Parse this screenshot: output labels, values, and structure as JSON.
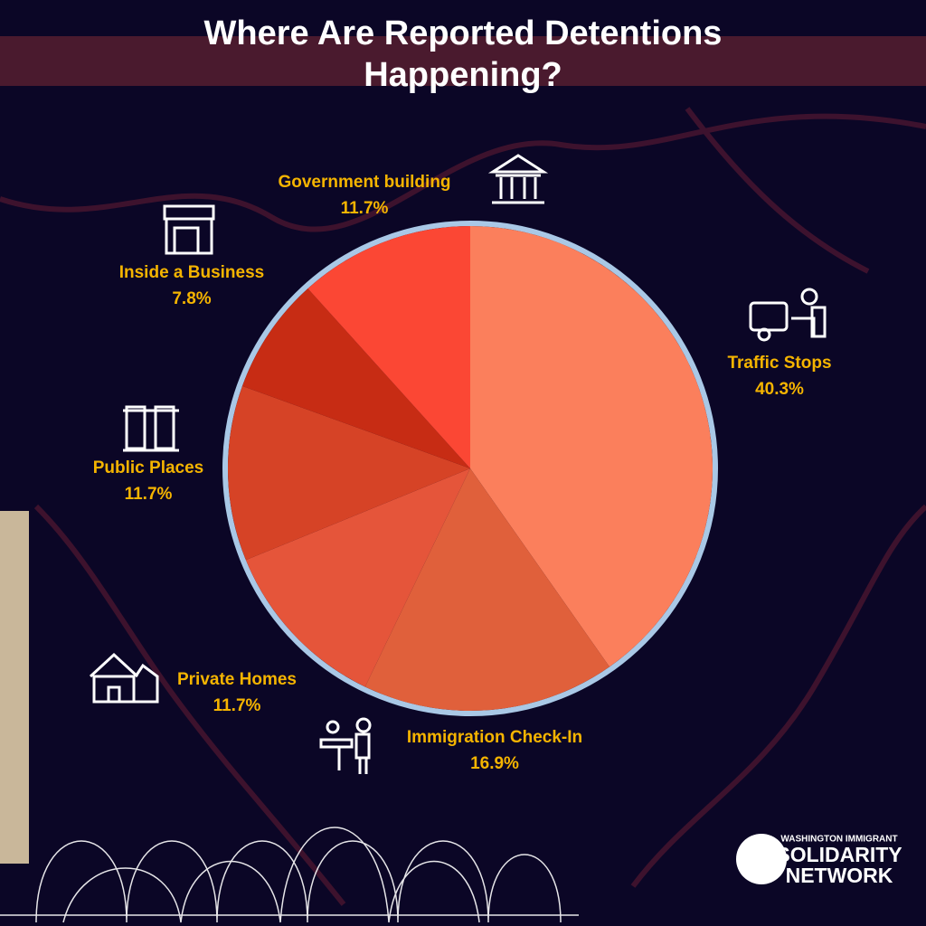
{
  "chart_data": {
    "type": "pie",
    "title": "Where Are Reported Detentions Happening?",
    "categories": [
      "Traffic Stops",
      "Immigration Check-In",
      "Private Homes",
      "Public Places",
      "Inside a Business",
      "Government building"
    ],
    "values": [
      40.3,
      16.9,
      11.7,
      11.7,
      7.8,
      11.7
    ],
    "value_labels": [
      "40.3%",
      "16.9%",
      "11.7%",
      "11.7%",
      "7.8%",
      "11.7%"
    ],
    "colors": [
      "#fb7f5c",
      "#e0603b",
      "#e5553a",
      "#d64326",
      "#c72c14",
      "#fb4734"
    ]
  },
  "logo": {
    "line1": "WASHINGTON IMMIGRANT",
    "line2": "SOLIDARITY",
    "line3": "NETWORK"
  }
}
